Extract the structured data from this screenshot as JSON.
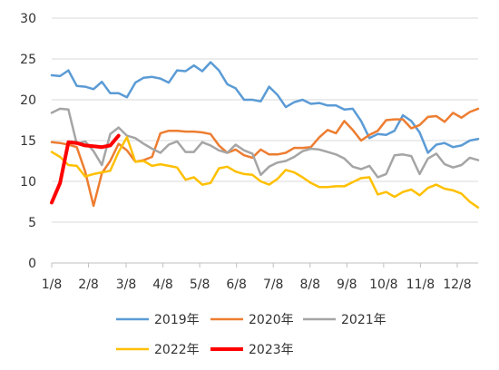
{
  "chart_data": {
    "type": "line",
    "ylim": [
      0,
      30
    ],
    "yticks": [
      0,
      5,
      10,
      15,
      20,
      25,
      30
    ],
    "xlim": [
      1,
      52
    ],
    "xtick_labels": [
      {
        "week": 1,
        "label": "1/8"
      },
      {
        "week": 5.4,
        "label": "2/8"
      },
      {
        "week": 9.9,
        "label": "3/8"
      },
      {
        "week": 14.3,
        "label": "4/8"
      },
      {
        "week": 18.7,
        "label": "5/8"
      },
      {
        "week": 23.1,
        "label": "6/8"
      },
      {
        "week": 27.5,
        "label": "7/8"
      },
      {
        "week": 31.9,
        "label": "8/8"
      },
      {
        "week": 36.3,
        "label": "9/8"
      },
      {
        "week": 40.7,
        "label": "10/8"
      },
      {
        "week": 45.1,
        "label": "11/8"
      },
      {
        "week": 49.5,
        "label": "12/8"
      }
    ],
    "grid": "horizontal",
    "legend_position": "bottom",
    "series": [
      {
        "name": "2019年",
        "color": "#5b9bd5",
        "width": 2.5,
        "values": [
          23.0,
          22.9,
          23.6,
          21.7,
          21.6,
          21.3,
          22.2,
          20.8,
          20.8,
          20.3,
          22.1,
          22.7,
          22.8,
          22.6,
          22.1,
          23.6,
          23.5,
          24.2,
          23.5,
          24.6,
          23.6,
          21.9,
          21.4,
          20.0,
          20.0,
          19.8,
          21.6,
          20.6,
          19.1,
          19.7,
          20.0,
          19.5,
          19.6,
          19.3,
          19.3,
          18.8,
          18.9,
          17.4,
          15.3,
          15.8,
          15.7,
          16.2,
          18.1,
          17.4,
          16.0,
          13.5,
          14.5,
          14.7,
          14.2,
          14.4,
          15.0,
          15.2
        ]
      },
      {
        "name": "2020年",
        "color": "#ed7d31",
        "width": 2.5,
        "values": [
          14.8,
          14.7,
          14.5,
          14.2,
          11.2,
          7.0,
          11.0,
          12.5,
          14.6,
          13.8,
          12.4,
          12.6,
          13.0,
          15.9,
          16.2,
          16.2,
          16.1,
          16.1,
          16.0,
          15.8,
          14.4,
          13.5,
          13.9,
          13.2,
          12.9,
          13.9,
          13.3,
          13.3,
          13.5,
          14.1,
          14.1,
          14.2,
          15.4,
          16.3,
          15.9,
          17.4,
          16.3,
          15.0,
          15.7,
          16.2,
          17.5,
          17.6,
          17.6,
          16.5,
          16.9,
          17.9,
          18.0,
          17.3,
          18.4,
          17.8,
          18.5,
          18.9
        ]
      },
      {
        "name": "2021年",
        "color": "#a5a5a5",
        "width": 2.5,
        "values": [
          18.4,
          18.9,
          18.8,
          14.6,
          14.9,
          13.7,
          12.0,
          15.8,
          16.6,
          15.6,
          15.3,
          14.6,
          14.0,
          13.5,
          14.5,
          14.9,
          13.6,
          13.6,
          14.8,
          14.4,
          13.8,
          13.5,
          14.5,
          13.8,
          13.4,
          10.8,
          11.8,
          12.3,
          12.5,
          13.0,
          13.7,
          14.0,
          13.9,
          13.6,
          13.3,
          12.8,
          11.8,
          11.5,
          11.9,
          10.5,
          10.9,
          13.2,
          13.3,
          13.1,
          10.9,
          12.8,
          13.4,
          12.1,
          11.7,
          12.0,
          12.9,
          12.6
        ]
      },
      {
        "name": "2022年",
        "color": "#ffc000",
        "width": 2.5,
        "values": [
          13.6,
          13.0,
          12.0,
          11.9,
          10.6,
          10.9,
          11.1,
          11.3,
          13.6,
          15.4,
          12.4,
          12.5,
          11.9,
          12.1,
          11.9,
          11.7,
          10.2,
          10.5,
          9.6,
          9.8,
          11.6,
          11.8,
          11.2,
          10.9,
          10.8,
          10.0,
          9.6,
          10.3,
          11.4,
          11.1,
          10.5,
          9.8,
          9.3,
          9.3,
          9.4,
          9.4,
          9.9,
          10.4,
          10.5,
          8.4,
          8.7,
          8.1,
          8.7,
          9.0,
          8.3,
          9.2,
          9.6,
          9.1,
          8.9,
          8.5,
          7.5,
          6.8
        ]
      },
      {
        "name": "2023年",
        "color": "#ff0000",
        "width": 4,
        "values": [
          7.4,
          9.8,
          14.8,
          14.7,
          14.4,
          14.3,
          14.2,
          14.4,
          15.6
        ]
      }
    ]
  }
}
